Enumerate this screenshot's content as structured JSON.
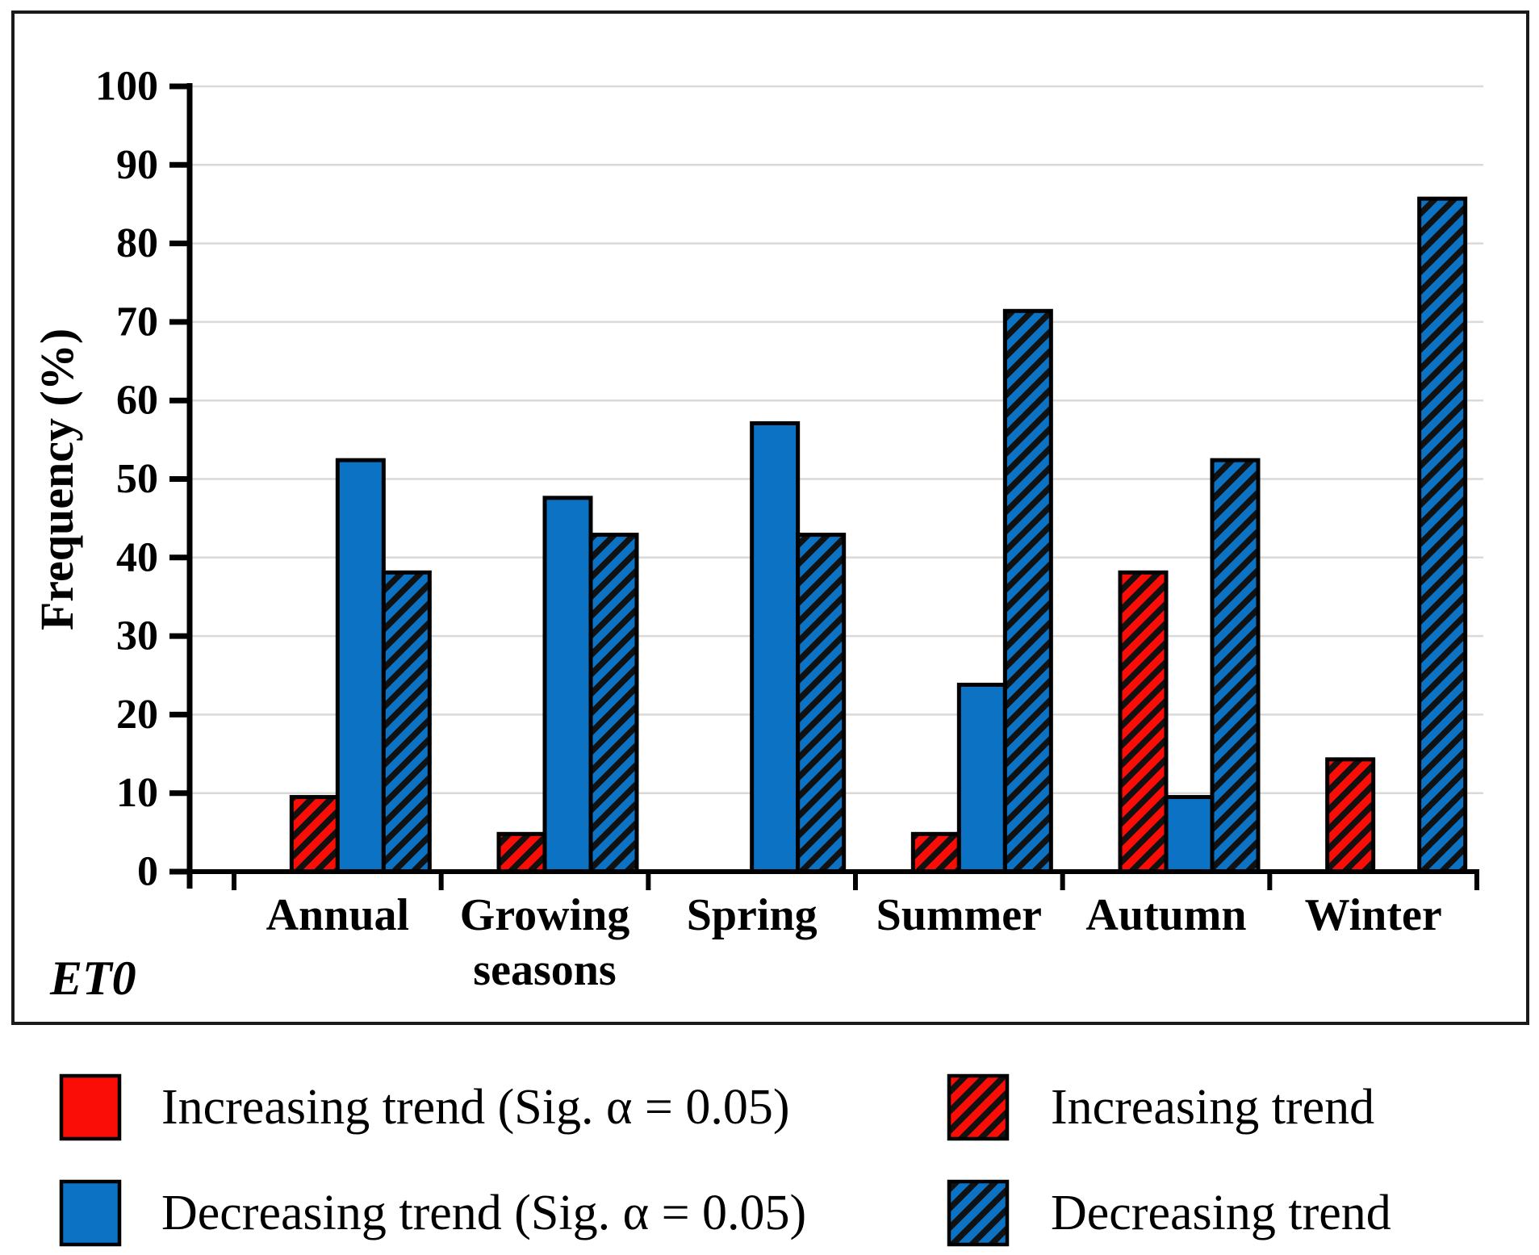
{
  "chart_data": {
    "type": "bar",
    "title": "",
    "panel_label": "ET0",
    "ylabel": "Frequency (%)",
    "ylim": [
      0,
      100
    ],
    "ytick_step": 10,
    "ytick_labels": [
      "0",
      "10",
      "20",
      "30",
      "40",
      "50",
      "60",
      "70",
      "80",
      "90",
      "100"
    ],
    "grid": true,
    "legend_position": "below chart, 2 columns x 2 rows",
    "categories": [
      "Annual",
      "Growing seasons",
      "Spring",
      "Summer",
      "Autumn",
      "Winter"
    ],
    "series": [
      {
        "name": "Increasing trend (Sig. α = 0.05)",
        "key": "increasing-trend-significant",
        "pattern": "solid",
        "color": "#f90d06",
        "values": [
          0,
          0,
          0,
          0,
          0,
          0
        ]
      },
      {
        "name": "Increasing trend",
        "key": "increasing-trend",
        "pattern": "hatched",
        "color": "#f90d06",
        "values": [
          9.5,
          4.8,
          0,
          4.8,
          38.1,
          14.3
        ]
      },
      {
        "name": "Decreasing trend (Sig. α = 0.05)",
        "key": "decreasing-trend-significant",
        "pattern": "solid",
        "color": "#0c72c4",
        "values": [
          52.4,
          47.6,
          57.1,
          23.8,
          9.5,
          0
        ]
      },
      {
        "name": "Decreasing trend",
        "key": "decreasing-trend",
        "pattern": "hatched",
        "color": "#0c72c4",
        "values": [
          38.1,
          42.9,
          42.9,
          71.4,
          52.4,
          85.7
        ]
      }
    ],
    "legend_rows": [
      [
        0,
        1
      ],
      [
        2,
        3
      ]
    ],
    "colors": {
      "grid": "#d9d9d9",
      "axis": "#000000",
      "bar_outline": "#000000",
      "hatch_stripe": "#111111",
      "frame": "#1a1a1a"
    }
  }
}
